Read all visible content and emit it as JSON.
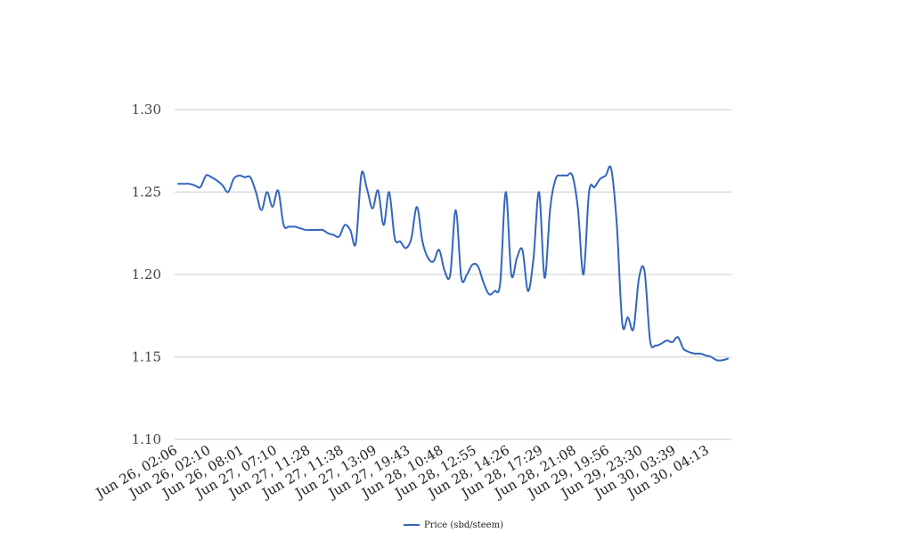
{
  "chart_data": {
    "type": "line",
    "ylim": [
      1.1,
      1.3
    ],
    "y_ticks": [
      "1.10",
      "1.15",
      "1.20",
      "1.25",
      "1.30"
    ],
    "y_tick_values": [
      1.1,
      1.15,
      1.2,
      1.25,
      1.3
    ],
    "x_tick_labels": [
      "Jun 26, 02:06",
      "Jun 26, 02:10",
      "Jun 26, 08:01",
      "Jun 27, 07:10",
      "Jun 27, 11:28",
      "Jun 27, 11:38",
      "Jun 27, 13:09",
      "Jun 27, 19:43",
      "Jun 28, 10:48",
      "Jun 28, 12:55",
      "Jun 28, 14:26",
      "Jun 28, 17:29",
      "Jun 28, 21:08",
      "Jun 29, 19:56",
      "Jun 29, 23:30",
      "Jun 30, 03:39",
      "Jun 30, 04:13"
    ],
    "grid": true,
    "legend_position": "bottom",
    "series": [
      {
        "name": "Price (sbd/steem)",
        "color": "#3366bb",
        "values": [
          1.255,
          1.255,
          1.255,
          1.254,
          1.253,
          1.26,
          1.259,
          1.257,
          1.254,
          1.25,
          1.258,
          1.26,
          1.259,
          1.259,
          1.25,
          1.239,
          1.25,
          1.241,
          1.251,
          1.23,
          1.229,
          1.229,
          1.228,
          1.227,
          1.227,
          1.227,
          1.227,
          1.225,
          1.224,
          1.223,
          1.23,
          1.227,
          1.219,
          1.261,
          1.252,
          1.24,
          1.251,
          1.23,
          1.25,
          1.222,
          1.22,
          1.216,
          1.222,
          1.241,
          1.22,
          1.21,
          1.208,
          1.215,
          1.202,
          1.2,
          1.239,
          1.198,
          1.2,
          1.206,
          1.205,
          1.195,
          1.188,
          1.19,
          1.195,
          1.25,
          1.2,
          1.21,
          1.215,
          1.19,
          1.21,
          1.25,
          1.198,
          1.24,
          1.258,
          1.26,
          1.26,
          1.26,
          1.24,
          1.2,
          1.25,
          1.253,
          1.258,
          1.26,
          1.264,
          1.23,
          1.17,
          1.174,
          1.167,
          1.198,
          1.202,
          1.16,
          1.157,
          1.158,
          1.16,
          1.159,
          1.162,
          1.155,
          1.153,
          1.152,
          1.152,
          1.151,
          1.15,
          1.148,
          1.148,
          1.149
        ]
      }
    ]
  }
}
